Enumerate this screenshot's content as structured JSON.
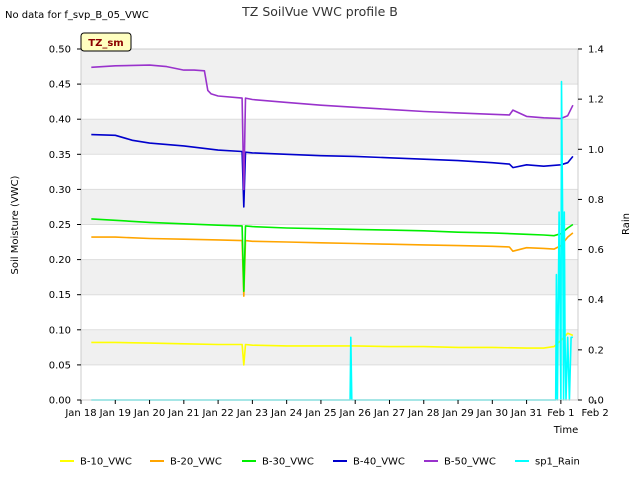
{
  "chart_data": {
    "type": "line",
    "title": "TZ SoilVue VWC profile B",
    "note": "No data for f_svp_B_05_VWC",
    "badge": "TZ_sm",
    "xlabel": "Time",
    "ylabel": "Soil Moisture (VWC)",
    "y2label": "Rain",
    "grid": true,
    "legend_position": "bottom",
    "xlim": [
      0,
      14.5
    ],
    "ylim": [
      0,
      0.5
    ],
    "y2lim": [
      0,
      1.4
    ],
    "x_tick_labels": [
      "Jan 18",
      "Jan 19",
      "Jan 20",
      "Jan 21",
      "Jan 22",
      "Jan 23",
      "Jan 24",
      "Jan 25",
      "Jan 26",
      "Jan 27",
      "Jan 28",
      "Jan 29",
      "Jan 30",
      "Jan 31",
      "Feb 1",
      "Feb 2"
    ],
    "y_ticks": [
      "0.00",
      "0.05",
      "0.10",
      "0.15",
      "0.20",
      "0.25",
      "0.30",
      "0.35",
      "0.40",
      "0.45",
      "0.50"
    ],
    "y2_ticks": [
      "0.0",
      "0.2",
      "0.4",
      "0.6",
      "0.8",
      "1.0",
      "1.2",
      "1.4"
    ],
    "series": [
      {
        "name": "B-10_VWC",
        "color": "#ffff00",
        "axis": "left",
        "x": [
          0.3,
          1,
          2,
          3,
          4,
          4.7,
          4.75,
          4.8,
          5,
          6,
          7,
          8,
          9,
          10,
          11,
          12,
          13,
          13.5,
          13.8,
          14.0,
          14.2,
          14.35
        ],
        "y": [
          0.082,
          0.082,
          0.081,
          0.08,
          0.079,
          0.079,
          0.05,
          0.079,
          0.078,
          0.077,
          0.077,
          0.077,
          0.076,
          0.076,
          0.075,
          0.075,
          0.074,
          0.074,
          0.076,
          0.085,
          0.095,
          0.092
        ]
      },
      {
        "name": "B-20_VWC",
        "color": "#ffa500",
        "axis": "left",
        "x": [
          0.3,
          1,
          2,
          3,
          4,
          4.7,
          4.75,
          4.8,
          5,
          6,
          7,
          8,
          9,
          10,
          11,
          12,
          12.5,
          12.6,
          13,
          13.5,
          13.8,
          14.0,
          14.2,
          14.35
        ],
        "y": [
          0.232,
          0.232,
          0.23,
          0.229,
          0.228,
          0.227,
          0.148,
          0.227,
          0.226,
          0.225,
          0.224,
          0.223,
          0.222,
          0.221,
          0.22,
          0.219,
          0.218,
          0.212,
          0.217,
          0.216,
          0.215,
          0.22,
          0.232,
          0.238
        ]
      },
      {
        "name": "B-30_VWC",
        "color": "#00ee00",
        "axis": "left",
        "x": [
          0.3,
          1,
          2,
          3,
          4,
          4.7,
          4.75,
          4.8,
          5,
          6,
          7,
          8,
          9,
          10,
          11,
          12,
          13,
          13.5,
          13.8,
          14.0,
          14.2,
          14.35
        ],
        "y": [
          0.258,
          0.256,
          0.253,
          0.251,
          0.249,
          0.248,
          0.155,
          0.248,
          0.247,
          0.245,
          0.244,
          0.243,
          0.242,
          0.241,
          0.239,
          0.238,
          0.236,
          0.235,
          0.234,
          0.237,
          0.245,
          0.25
        ]
      },
      {
        "name": "B-40_VWC",
        "color": "#0000cc",
        "axis": "left",
        "x": [
          0.3,
          1,
          1.5,
          2,
          3,
          4,
          4.7,
          4.75,
          4.8,
          5,
          6,
          7,
          8,
          9,
          10,
          11,
          12,
          12.5,
          12.6,
          13,
          13.5,
          14.0,
          14.2,
          14.35
        ],
        "y": [
          0.378,
          0.377,
          0.37,
          0.366,
          0.362,
          0.356,
          0.354,
          0.275,
          0.353,
          0.352,
          0.35,
          0.348,
          0.347,
          0.345,
          0.343,
          0.341,
          0.338,
          0.336,
          0.331,
          0.335,
          0.333,
          0.335,
          0.338,
          0.347
        ]
      },
      {
        "name": "B-50_VWC",
        "color": "#9932cc",
        "axis": "left",
        "x": [
          0.3,
          1,
          2,
          2.5,
          3,
          3.3,
          3.6,
          3.7,
          3.8,
          4,
          4.7,
          4.75,
          4.8,
          5,
          6,
          7,
          8,
          9,
          10,
          11,
          12,
          12.5,
          12.6,
          13,
          13.5,
          14.0,
          14.2,
          14.35
        ],
        "y": [
          0.474,
          0.476,
          0.477,
          0.475,
          0.47,
          0.47,
          0.469,
          0.441,
          0.436,
          0.433,
          0.43,
          0.3,
          0.43,
          0.428,
          0.424,
          0.42,
          0.417,
          0.414,
          0.411,
          0.409,
          0.407,
          0.406,
          0.413,
          0.404,
          0.402,
          0.401,
          0.405,
          0.42
        ]
      },
      {
        "name": "sp1_Rain",
        "color": "#00ffff",
        "axis": "right",
        "x": [
          0.3,
          7.85,
          7.87,
          7.9,
          7.95,
          13.85,
          13.87,
          13.9,
          13.95,
          14.0,
          14.02,
          14.05,
          14.08,
          14.1,
          14.12,
          14.15,
          14.2,
          14.25,
          14.3,
          14.35
        ],
        "y": [
          0,
          0,
          0.25,
          0,
          0,
          0,
          0.5,
          0,
          0.75,
          0,
          1.27,
          0.75,
          0,
          0.75,
          0.25,
          0,
          0.25,
          0,
          0.25,
          0.25
        ]
      }
    ]
  }
}
